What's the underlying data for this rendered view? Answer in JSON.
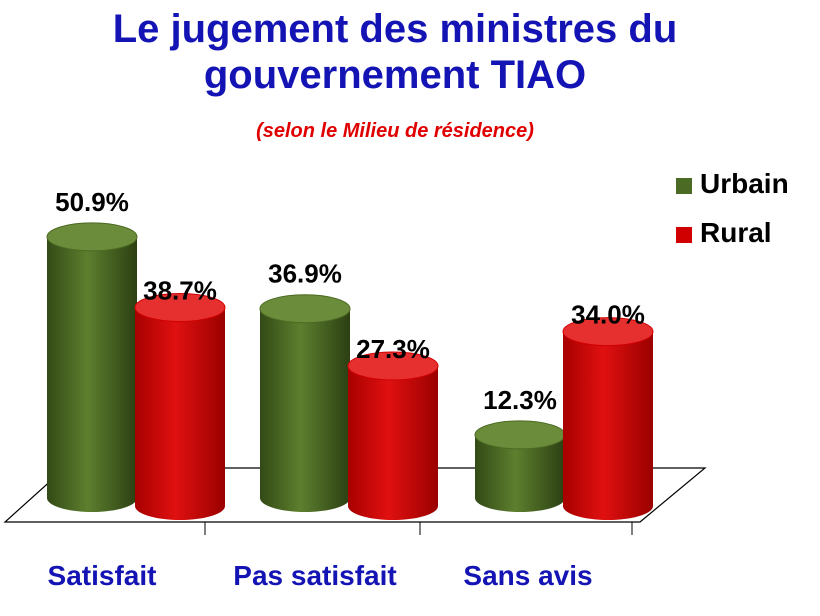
{
  "chart_data": {
    "type": "bar",
    "title_line1": "Le jugement des ministres du",
    "title_line2": "gouvernement TIAO",
    "subtitle": "(selon le Milieu de résidence)",
    "categories": [
      "Satisfait",
      "Pas satisfait",
      "Sans avis"
    ],
    "series": [
      {
        "name": "Urbain",
        "values": [
          50.9,
          36.9,
          12.3
        ],
        "labels": [
          "50.9%",
          "36.9%",
          "12.3%"
        ],
        "color": "#4b6a23",
        "top_color": "#6b8c3a"
      },
      {
        "name": "Rural",
        "values": [
          38.7,
          27.3,
          34.0
        ],
        "labels": [
          "38.7%",
          "27.3%",
          "34.0%"
        ],
        "color": "#d00000",
        "top_color": "#e63030"
      }
    ],
    "ylim": [
      0,
      55
    ],
    "legend_position": "top-right",
    "grid": false
  }
}
